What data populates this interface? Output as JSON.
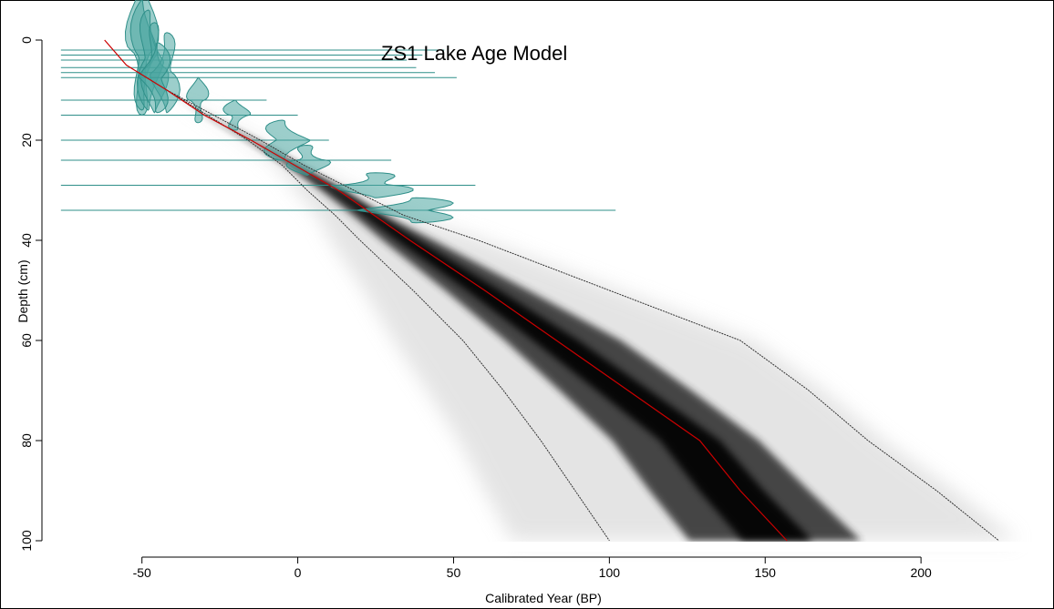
{
  "chart_data": {
    "type": "line",
    "title": "ZS1 Lake Age Model",
    "xlabel": "Calibrated Year (BP)",
    "ylabel": "Depth (cm)",
    "xlim": [
      -78,
      238
    ],
    "ylim": [
      -4,
      102
    ],
    "x_ticks": [
      -50,
      0,
      50,
      100,
      150,
      200
    ],
    "y_ticks": [
      0,
      20,
      40,
      60,
      80,
      100
    ],
    "y_reversed": true,
    "grid": false,
    "colors": {
      "median": "#cc0000",
      "interval": "#333333",
      "dates": "#4aa6a0",
      "dates_line": "#2f8f89"
    },
    "median": {
      "depth": [
        0,
        5,
        10,
        15,
        20,
        30,
        40,
        50,
        60,
        70,
        80,
        90,
        100
      ],
      "year": [
        -62,
        -55,
        -42,
        -30,
        -15,
        13,
        36,
        60,
        83,
        106,
        129,
        142,
        157
      ]
    },
    "lower_95": {
      "depth": [
        10,
        20,
        25,
        30,
        35,
        40,
        50,
        60,
        70,
        80,
        90,
        100
      ],
      "year": [
        -42,
        -16,
        -5,
        3,
        12,
        20,
        37,
        53,
        66,
        78,
        89,
        100
      ]
    },
    "upper_95": {
      "depth": [
        10,
        20,
        25,
        30,
        35,
        40,
        50,
        60,
        70,
        80,
        90,
        100
      ],
      "year": [
        -42,
        -12,
        2,
        18,
        34,
        58,
        100,
        142,
        164,
        183,
        205,
        225
      ]
    },
    "dated_levels": [
      {
        "depth": 2,
        "year": -50,
        "spread": 12,
        "height": 26,
        "line_max": 47
      },
      {
        "depth": 3,
        "year": -50,
        "spread": 10,
        "height": 22,
        "line_max": 40
      },
      {
        "depth": 4,
        "year": -48,
        "spread": 10,
        "height": 20,
        "line_max": 35
      },
      {
        "depth": 5.5,
        "year": -46,
        "spread": 10,
        "height": 18,
        "line_max": 38
      },
      {
        "depth": 6.5,
        "year": -42,
        "spread": 11,
        "height": 16,
        "line_max": 44
      },
      {
        "depth": 7.5,
        "year": -45,
        "spread": 12,
        "height": 14,
        "line_max": 51
      },
      {
        "depth": 12,
        "year": -32,
        "spread": 8,
        "height": 9,
        "line_max": -10
      },
      {
        "depth": 15,
        "year": -20,
        "spread": 10,
        "height": 6,
        "line_max": 0
      },
      {
        "depth": 20,
        "year": -5,
        "spread": 18,
        "height": 8,
        "line_max": 10
      },
      {
        "depth": 24,
        "year": 3,
        "spread": 16,
        "height": 6,
        "line_max": 30
      },
      {
        "depth": 29,
        "year": 25,
        "spread": 30,
        "height": 5,
        "line_max": 57
      },
      {
        "depth": 34,
        "year": 38,
        "spread": 38,
        "height": 5,
        "line_max": 102
      }
    ]
  }
}
